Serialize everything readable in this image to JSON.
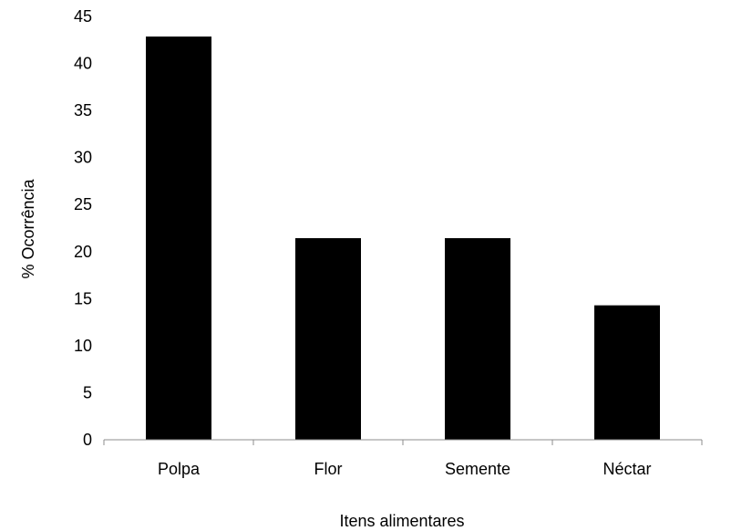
{
  "chart_data": {
    "type": "bar",
    "title": "",
    "xlabel": "Itens alimentares",
    "ylabel": "% Ocorrência",
    "categories": [
      "Polpa",
      "Flor",
      "Semente",
      "Néctar"
    ],
    "values": [
      42.86,
      21.43,
      21.43,
      14.29
    ],
    "ylim": [
      0,
      45
    ],
    "yticks": [
      "0",
      "5",
      "10",
      "15",
      "20",
      "25",
      "30",
      "35",
      "40",
      "45"
    ],
    "grid": false,
    "legend": "none",
    "bar_color": "#000000"
  }
}
